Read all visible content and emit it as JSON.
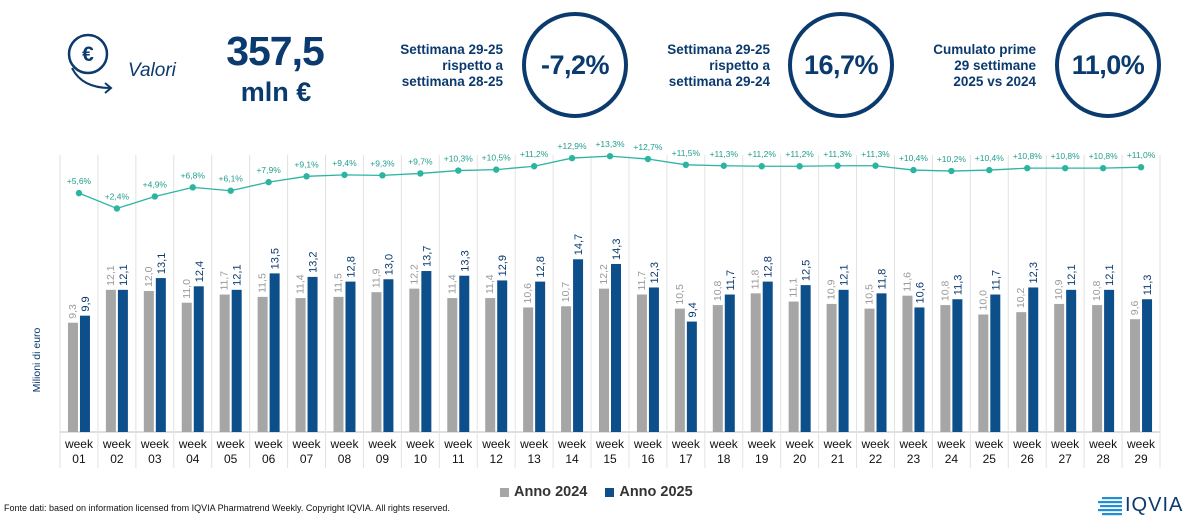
{
  "header": {
    "section_label": "Valori",
    "total_value": "357,5",
    "total_unit": "mln €",
    "kpis": [
      {
        "label_lines": [
          "Settimana 29-25",
          "rispetto a",
          "settimana 28-25"
        ],
        "value": "-7,2%"
      },
      {
        "label_lines": [
          "Settimana 29-25",
          "rispetto a",
          "settimana 29-24"
        ],
        "value": "16,7%"
      },
      {
        "label_lines": [
          "Cumulato prime",
          "29 settimane",
          "2025 vs 2024"
        ],
        "value": "11,0%"
      }
    ]
  },
  "colors": {
    "primary": "#0b3a6e",
    "series_2024": "#a6a6a6",
    "series_2025": "#0d4f8b",
    "growth_line": "#2bb5a0"
  },
  "chart_data": {
    "type": "bar",
    "ylabel": "Milioni di euro",
    "categories": [
      [
        "week",
        "01"
      ],
      [
        "week",
        "02"
      ],
      [
        "week",
        "03"
      ],
      [
        "week",
        "04"
      ],
      [
        "week",
        "05"
      ],
      [
        "week",
        "06"
      ],
      [
        "week",
        "07"
      ],
      [
        "week",
        "08"
      ],
      [
        "week",
        "09"
      ],
      [
        "week",
        "10"
      ],
      [
        "week",
        "11"
      ],
      [
        "week",
        "12"
      ],
      [
        "week",
        "13"
      ],
      [
        "week",
        "14"
      ],
      [
        "week",
        "15"
      ],
      [
        "week",
        "16"
      ],
      [
        "week",
        "17"
      ],
      [
        "week",
        "18"
      ],
      [
        "week",
        "19"
      ],
      [
        "week",
        "20"
      ],
      [
        "week",
        "21"
      ],
      [
        "week",
        "22"
      ],
      [
        "week",
        "23"
      ],
      [
        "week",
        "24"
      ],
      [
        "week",
        "25"
      ],
      [
        "week",
        "26"
      ],
      [
        "week",
        "27"
      ],
      [
        "week",
        "28"
      ],
      [
        "week",
        "29"
      ]
    ],
    "series": [
      {
        "name": "Anno 2024",
        "values": [
          9.3,
          12.1,
          12.0,
          11.0,
          11.7,
          11.5,
          11.4,
          11.5,
          11.9,
          12.2,
          11.4,
          11.4,
          10.6,
          10.7,
          12.2,
          11.7,
          10.5,
          10.8,
          11.8,
          11.1,
          10.9,
          10.5,
          11.6,
          10.8,
          10.0,
          10.2,
          10.9,
          10.8,
          9.6
        ],
        "labels": [
          "9,3",
          "12,1",
          "12,0",
          "11,0",
          "11,7",
          "11,5",
          "11,4",
          "11,5",
          "11,9",
          "12,2",
          "11,4",
          "11,4",
          "10,6",
          "10,7",
          "12,2",
          "11,7",
          "10,5",
          "10,8",
          "11,8",
          "11,1",
          "10,9",
          "10,5",
          "11,6",
          "10,8",
          "10,0",
          "10,2",
          "10,9",
          "10,8",
          "9,6"
        ]
      },
      {
        "name": "Anno 2025",
        "values": [
          9.9,
          12.1,
          13.1,
          12.4,
          12.1,
          13.5,
          13.2,
          12.8,
          13.0,
          13.7,
          13.3,
          12.9,
          12.8,
          14.7,
          14.3,
          12.3,
          9.4,
          11.7,
          12.8,
          12.5,
          12.1,
          11.8,
          10.6,
          11.3,
          11.7,
          12.3,
          12.1,
          12.1,
          11.3
        ],
        "labels": [
          "9,9",
          "12,1",
          "13,1",
          "12,4",
          "12,1",
          "13,5",
          "13,2",
          "12,8",
          "13,0",
          "13,7",
          "13,3",
          "12,9",
          "12,8",
          "14,7",
          "14,3",
          "12,3",
          "9,4",
          "11,7",
          "12,8",
          "12,5",
          "12,1",
          "11,8",
          "10,6",
          "11,3",
          "11,7",
          "12,3",
          "12,1",
          "12,1",
          "11,3"
        ]
      }
    ],
    "cumulative_growth": {
      "values": [
        5.6,
        2.4,
        4.9,
        6.8,
        6.1,
        7.9,
        9.1,
        9.4,
        9.3,
        9.7,
        10.3,
        10.5,
        11.2,
        12.9,
        13.3,
        12.7,
        11.5,
        11.3,
        11.2,
        11.2,
        11.3,
        11.3,
        10.4,
        10.2,
        10.4,
        10.8,
        10.8,
        10.8,
        11.0
      ],
      "labels": [
        "+5,6%",
        "+2,4%",
        "+4,9%",
        "+6,8%",
        "+6,1%",
        "+7,9%",
        "+9,1%",
        "+9,4%",
        "+9,3%",
        "+9,7%",
        "+10,3%",
        "+10,5%",
        "+11,2%",
        "+12,9%",
        "+13,3%",
        "+12,7%",
        "+11,5%",
        "+11,3%",
        "+11,2%",
        "+11,2%",
        "+11,3%",
        "+11,3%",
        "+10,4%",
        "+10,2%",
        "+10,4%",
        "+10,8%",
        "+10,8%",
        "+10,8%",
        "+11,0%"
      ]
    },
    "ylim": [
      0,
      24
    ],
    "grid": false,
    "legend_position": "bottom"
  },
  "legend": [
    "Anno 2024",
    "Anno 2025"
  ],
  "footer": {
    "source": "Fonte dati: based on information licensed from IQVIA Pharmatrend Weekly. Copyright IQVIA. All rights reserved.",
    "logo_text": "IQVIA"
  }
}
